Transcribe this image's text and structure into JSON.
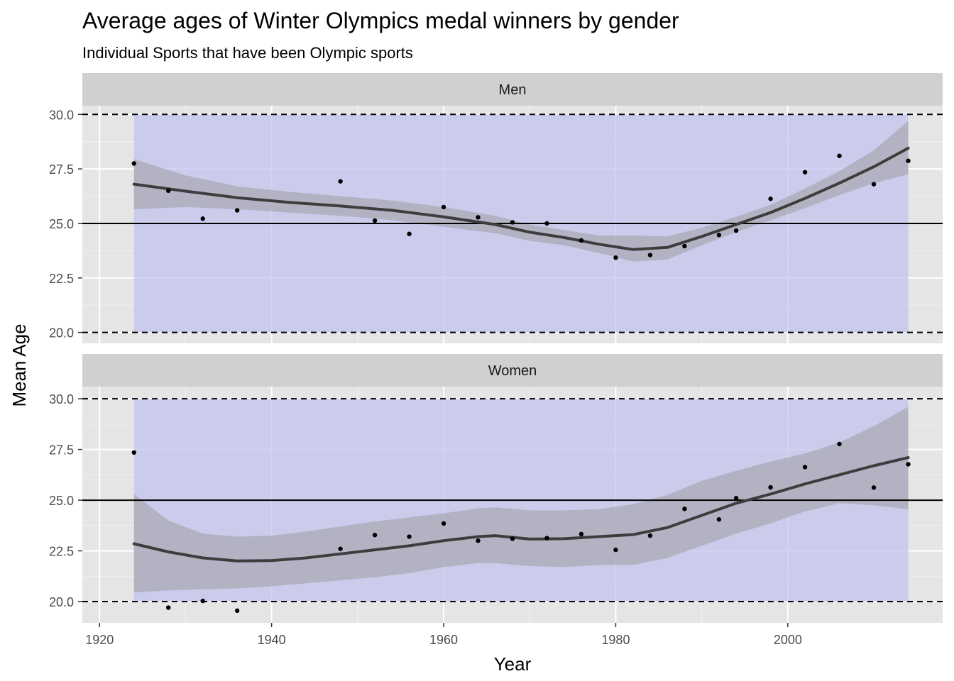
{
  "chart_data": {
    "type": "scatter",
    "title": "Average ages of Winter Olympics medal winners by gender",
    "subtitle": "Individual Sports that have been Olympic sports",
    "xlabel": "Year",
    "ylabel": "Mean Age",
    "xlim": [
      1918,
      2018
    ],
    "x_ticks": [
      1920,
      1940,
      1960,
      1980,
      2000
    ],
    "y_ticks": [
      20.0,
      22.5,
      25.0,
      27.5,
      30.0
    ],
    "y_tick_labels": [
      "20.0",
      "22.5",
      "25.0",
      "27.5",
      "30.0"
    ],
    "reference_lines": {
      "solid": 25.0,
      "dashed": [
        20.0,
        30.0
      ]
    },
    "shaded_band": {
      "x": [
        1924,
        2014
      ],
      "y": [
        20.0,
        30.0
      ],
      "color": "#c0c0f0"
    },
    "colors": {
      "panel_bg": "#e5e5e5",
      "strip_bg": "#d0d0d0",
      "smooth_line": "#3d3d3d",
      "ribbon": "#a9a9b5",
      "points": "#000000"
    },
    "panels": [
      {
        "label": "Men",
        "ylim": [
          19.5,
          30.4
        ],
        "points": [
          [
            1924,
            27.75
          ],
          [
            1928,
            26.5
          ],
          [
            1932,
            25.22
          ],
          [
            1936,
            25.6
          ],
          [
            1948,
            26.93
          ],
          [
            1952,
            25.13
          ],
          [
            1956,
            24.52
          ],
          [
            1960,
            25.75
          ],
          [
            1964,
            25.28
          ],
          [
            1968,
            25.05
          ],
          [
            1972,
            25.0
          ],
          [
            1976,
            24.22
          ],
          [
            1980,
            23.43
          ],
          [
            1984,
            23.55
          ],
          [
            1988,
            23.96
          ],
          [
            1992,
            24.47
          ],
          [
            1994,
            24.67
          ],
          [
            1998,
            26.13
          ],
          [
            2002,
            27.35
          ],
          [
            2006,
            28.1
          ],
          [
            2010,
            26.8
          ],
          [
            2014,
            27.87
          ]
        ],
        "smooth": [
          [
            1924,
            26.8
          ],
          [
            1930,
            26.48
          ],
          [
            1936,
            26.18
          ],
          [
            1942,
            25.97
          ],
          [
            1948,
            25.8
          ],
          [
            1954,
            25.6
          ],
          [
            1960,
            25.3
          ],
          [
            1966,
            24.95
          ],
          [
            1970,
            24.6
          ],
          [
            1974,
            24.35
          ],
          [
            1978,
            24.05
          ],
          [
            1982,
            23.8
          ],
          [
            1986,
            23.9
          ],
          [
            1990,
            24.4
          ],
          [
            1994,
            24.95
          ],
          [
            1998,
            25.5
          ],
          [
            2002,
            26.15
          ],
          [
            2006,
            26.85
          ],
          [
            2010,
            27.6
          ],
          [
            2014,
            28.45
          ]
        ],
        "ribbon_upper": [
          [
            1924,
            27.95
          ],
          [
            1930,
            27.2
          ],
          [
            1936,
            26.7
          ],
          [
            1942,
            26.45
          ],
          [
            1948,
            26.25
          ],
          [
            1954,
            26.05
          ],
          [
            1960,
            25.75
          ],
          [
            1966,
            25.35
          ],
          [
            1970,
            24.95
          ],
          [
            1974,
            24.7
          ],
          [
            1978,
            24.45
          ],
          [
            1982,
            24.45
          ],
          [
            1986,
            24.4
          ],
          [
            1990,
            24.8
          ],
          [
            1994,
            25.3
          ],
          [
            1998,
            25.85
          ],
          [
            2002,
            26.6
          ],
          [
            2006,
            27.4
          ],
          [
            2010,
            28.35
          ],
          [
            2014,
            29.7
          ]
        ],
        "ribbon_lower": [
          [
            1924,
            25.65
          ],
          [
            1930,
            25.75
          ],
          [
            1936,
            25.65
          ],
          [
            1942,
            25.5
          ],
          [
            1948,
            25.35
          ],
          [
            1954,
            25.15
          ],
          [
            1960,
            24.85
          ],
          [
            1966,
            24.55
          ],
          [
            1970,
            24.2
          ],
          [
            1974,
            24.0
          ],
          [
            1978,
            23.65
          ],
          [
            1982,
            23.25
          ],
          [
            1986,
            23.35
          ],
          [
            1990,
            24.0
          ],
          [
            1994,
            24.6
          ],
          [
            1998,
            25.15
          ],
          [
            2002,
            25.7
          ],
          [
            2006,
            26.3
          ],
          [
            2010,
            26.85
          ],
          [
            2014,
            27.25
          ]
        ]
      },
      {
        "label": "Women",
        "ylim": [
          18.95,
          30.6
        ],
        "points": [
          [
            1924,
            27.35
          ],
          [
            1928,
            19.7
          ],
          [
            1932,
            20.03
          ],
          [
            1936,
            19.55
          ],
          [
            1948,
            22.6
          ],
          [
            1952,
            23.28
          ],
          [
            1956,
            23.2
          ],
          [
            1960,
            23.85
          ],
          [
            1964,
            23.0
          ],
          [
            1968,
            23.1
          ],
          [
            1972,
            23.13
          ],
          [
            1976,
            23.33
          ],
          [
            1980,
            22.55
          ],
          [
            1984,
            23.25
          ],
          [
            1988,
            24.57
          ],
          [
            1992,
            24.05
          ],
          [
            1994,
            25.1
          ],
          [
            1998,
            25.63
          ],
          [
            2002,
            26.63
          ],
          [
            2006,
            27.77
          ],
          [
            2010,
            25.62
          ],
          [
            2014,
            26.77
          ]
        ],
        "smooth": [
          [
            1924,
            22.85
          ],
          [
            1928,
            22.45
          ],
          [
            1932,
            22.15
          ],
          [
            1936,
            22.0
          ],
          [
            1940,
            22.02
          ],
          [
            1944,
            22.15
          ],
          [
            1948,
            22.35
          ],
          [
            1952,
            22.55
          ],
          [
            1956,
            22.75
          ],
          [
            1960,
            23.0
          ],
          [
            1964,
            23.2
          ],
          [
            1966,
            23.25
          ],
          [
            1970,
            23.08
          ],
          [
            1974,
            23.1
          ],
          [
            1978,
            23.2
          ],
          [
            1982,
            23.3
          ],
          [
            1986,
            23.65
          ],
          [
            1990,
            24.25
          ],
          [
            1994,
            24.85
          ],
          [
            1998,
            25.3
          ],
          [
            2002,
            25.8
          ],
          [
            2006,
            26.25
          ],
          [
            2010,
            26.7
          ],
          [
            2014,
            27.1
          ]
        ],
        "ribbon_upper": [
          [
            1924,
            25.3
          ],
          [
            1928,
            24.0
          ],
          [
            1932,
            23.35
          ],
          [
            1936,
            23.2
          ],
          [
            1940,
            23.25
          ],
          [
            1944,
            23.45
          ],
          [
            1948,
            23.7
          ],
          [
            1952,
            23.95
          ],
          [
            1956,
            24.15
          ],
          [
            1960,
            24.35
          ],
          [
            1964,
            24.6
          ],
          [
            1966,
            24.65
          ],
          [
            1970,
            24.5
          ],
          [
            1974,
            24.5
          ],
          [
            1978,
            24.55
          ],
          [
            1982,
            24.8
          ],
          [
            1986,
            25.25
          ],
          [
            1990,
            25.95
          ],
          [
            1994,
            26.45
          ],
          [
            1998,
            26.9
          ],
          [
            2002,
            27.3
          ],
          [
            2006,
            27.85
          ],
          [
            2010,
            28.65
          ],
          [
            2014,
            29.6
          ]
        ],
        "ribbon_lower": [
          [
            1924,
            20.45
          ],
          [
            1928,
            20.55
          ],
          [
            1932,
            20.6
          ],
          [
            1936,
            20.65
          ],
          [
            1940,
            20.75
          ],
          [
            1944,
            20.9
          ],
          [
            1948,
            21.05
          ],
          [
            1952,
            21.2
          ],
          [
            1956,
            21.4
          ],
          [
            1960,
            21.7
          ],
          [
            1964,
            21.9
          ],
          [
            1966,
            21.9
          ],
          [
            1970,
            21.75
          ],
          [
            1974,
            21.7
          ],
          [
            1978,
            21.8
          ],
          [
            1982,
            21.8
          ],
          [
            1986,
            22.15
          ],
          [
            1990,
            22.75
          ],
          [
            1994,
            23.35
          ],
          [
            1998,
            23.85
          ],
          [
            2002,
            24.45
          ],
          [
            2006,
            24.85
          ],
          [
            2010,
            24.75
          ],
          [
            2014,
            24.55
          ]
        ]
      }
    ]
  }
}
